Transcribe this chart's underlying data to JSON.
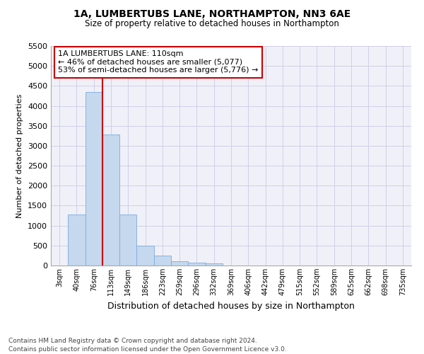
{
  "title_line1": "1A, LUMBERTUBS LANE, NORTHAMPTON, NN3 6AE",
  "title_line2": "Size of property relative to detached houses in Northampton",
  "xlabel": "Distribution of detached houses by size in Northampton",
  "ylabel": "Number of detached properties",
  "footer_line1": "Contains HM Land Registry data © Crown copyright and database right 2024.",
  "footer_line2": "Contains public sector information licensed under the Open Government Licence v3.0.",
  "annotation_title": "1A LUMBERTUBS LANE: 110sqm",
  "annotation_line2": "← 46% of detached houses are smaller (5,077)",
  "annotation_line3": "53% of semi-detached houses are larger (5,776) →",
  "vline_position": 3,
  "categories": [
    "3sqm",
    "40sqm",
    "76sqm",
    "113sqm",
    "149sqm",
    "186sqm",
    "223sqm",
    "259sqm",
    "296sqm",
    "332sqm",
    "369sqm",
    "406sqm",
    "442sqm",
    "479sqm",
    "515sqm",
    "552sqm",
    "589sqm",
    "625sqm",
    "662sqm",
    "698sqm",
    "735sqm"
  ],
  "bar_values": [
    0,
    1270,
    4340,
    3280,
    1280,
    490,
    240,
    100,
    75,
    60,
    0,
    0,
    0,
    0,
    0,
    0,
    0,
    0,
    0,
    0,
    0
  ],
  "bar_color": "#c5d8ed",
  "bar_edge_color": "#7aace0",
  "vline_color": "#cc0000",
  "ylim": [
    0,
    5500
  ],
  "yticks": [
    0,
    500,
    1000,
    1500,
    2000,
    2500,
    3000,
    3500,
    4000,
    4500,
    5000,
    5500
  ],
  "annotation_box_facecolor": "#ffffff",
  "annotation_box_edge": "#cc0000",
  "grid_color": "#d0d0e8",
  "bg_color": "#ffffff",
  "chart_bg_color": "#f0f0f8"
}
